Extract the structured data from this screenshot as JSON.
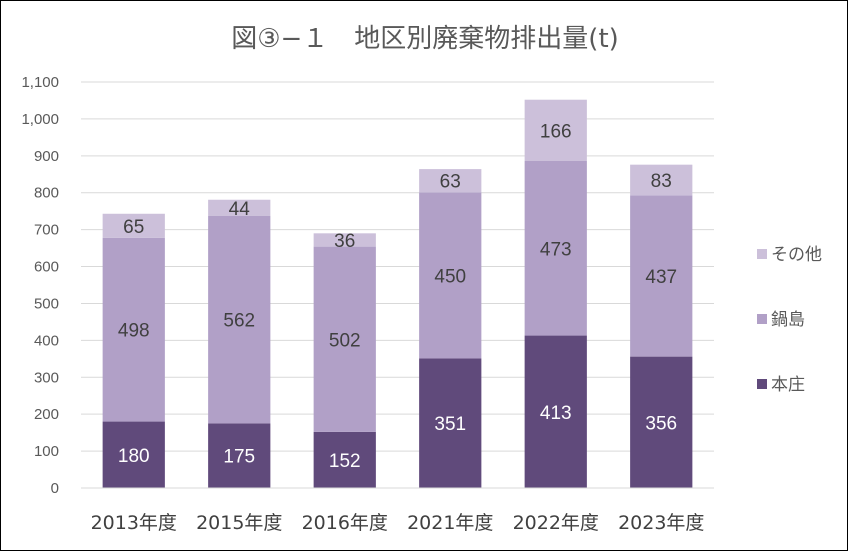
{
  "colors": {
    "background": "#ffffff",
    "gridline": "#d9d9d9",
    "axis_text": "#595959",
    "category_text": "#404040",
    "label_dark": "#404040",
    "label_light": "#ffffff"
  },
  "chart_data": {
    "type": "bar",
    "stacked": true,
    "title": "図③−１　地区別廃棄物排出量(t)",
    "xlabel": "",
    "ylabel": "",
    "categories": [
      "2013年度",
      "2015年度",
      "2016年度",
      "2021年度",
      "2022年度",
      "2023年度"
    ],
    "series": [
      {
        "name": "本庄",
        "values": [
          180,
          175,
          152,
          351,
          413,
          356
        ],
        "color": "#604a7b",
        "label_color": "#ffffff"
      },
      {
        "name": "鍋島",
        "values": [
          498,
          562,
          502,
          450,
          473,
          437
        ],
        "color": "#b1a0c7",
        "label_color": "#404040"
      },
      {
        "name": "その他",
        "values": [
          65,
          44,
          36,
          63,
          166,
          83
        ],
        "color": "#ccc0da",
        "label_color": "#404040"
      }
    ],
    "ylim": [
      0,
      1100
    ],
    "y_ticks": [
      "0",
      "100",
      "200",
      "300",
      "400",
      "500",
      "600",
      "700",
      "800",
      "900",
      "1,000",
      "1,100"
    ],
    "grid": true,
    "legend_position": "right",
    "legend_order": [
      "その他",
      "鍋島",
      "本庄"
    ]
  }
}
